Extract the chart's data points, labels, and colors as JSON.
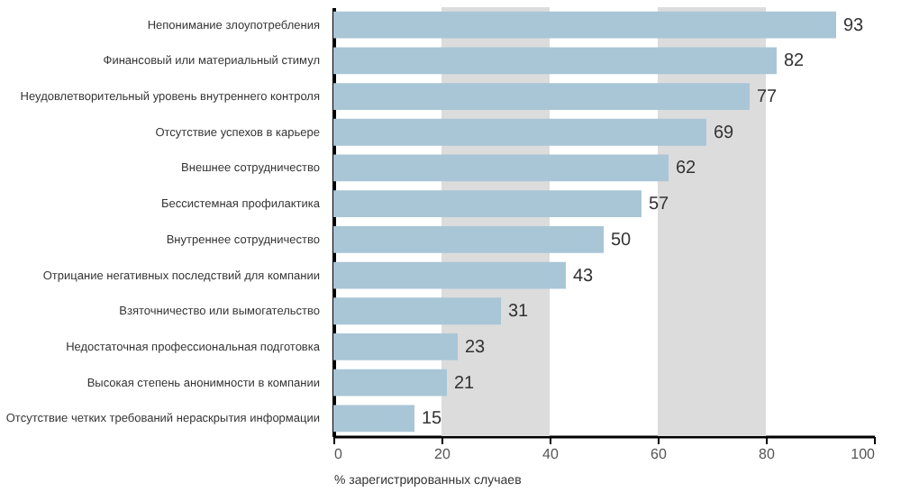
{
  "chart_data": {
    "type": "bar",
    "orientation": "horizontal",
    "xlabel": "% зарегистрированных случаев",
    "categories": [
      "Непонимание злоупотребления",
      "Финансовый или материальный стимул",
      "Неудовлетворительный уровень внутреннего контроля",
      "Отсутствие успехов в карьере",
      "Внешнее сотрудничество",
      "Бессистемная профилактика",
      "Внутреннее сотрудничество",
      "Отрицание негативных последствий для компании",
      "Взяточничество или вымогательство",
      "Недостаточная профессиональная подготовка",
      "Высокая степень анонимности в компании",
      "Отсутствие четких требований нераскрытия информации"
    ],
    "values": [
      93,
      82,
      77,
      69,
      62,
      57,
      50,
      43,
      31,
      23,
      21,
      15
    ],
    "color": "#a9c6d6",
    "xlim": [
      0,
      100
    ],
    "xticks": [
      0,
      20,
      40,
      60,
      80,
      100
    ],
    "grid": false,
    "data_labels": true,
    "bands": [
      {
        "axis": "x",
        "from": 20,
        "to": 40,
        "color": "#dcdcdc"
      },
      {
        "axis": "x",
        "from": 60,
        "to": 80,
        "color": "#dcdcdc"
      }
    ]
  }
}
